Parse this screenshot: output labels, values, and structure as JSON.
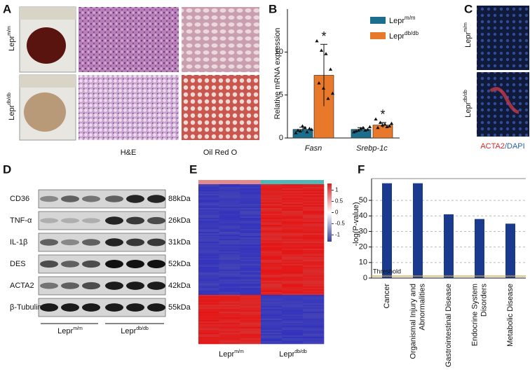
{
  "panels": {
    "a": {
      "letter": "A",
      "rows": [
        {
          "base": "Lepr",
          "sup": "m/m"
        },
        {
          "base": "Lepr",
          "sup": "db/db"
        }
      ],
      "stains": [
        "H&E",
        "Oil Red O"
      ]
    },
    "c": {
      "letter": "C",
      "rows": [
        {
          "base": "Lepr",
          "sup": "m/m"
        },
        {
          "base": "Lepr",
          "sup": "db/db"
        }
      ],
      "stain": [
        "ACTA2",
        "/DAPI"
      ]
    },
    "d": {
      "letter": "D",
      "proteins": [
        "CD36",
        "TNF-α",
        "IL-1β",
        "DES",
        "ACTA2",
        "β-Tubulin"
      ],
      "sizes": [
        "88kDa",
        "26kDa",
        "31kDa",
        "52kDa",
        "42kDa",
        "55kDa"
      ],
      "groups": [
        {
          "base": "Lepr",
          "sup": "m/m"
        },
        {
          "base": "Lepr",
          "sup": "db/db"
        }
      ]
    },
    "e": {
      "letter": "E",
      "scale_lim": [
        -1.3,
        1.3
      ],
      "scale_ticks": [
        1,
        0.5,
        0,
        -0.5,
        -1
      ],
      "groups": [
        {
          "base": "Lepr",
          "sup": "m/m"
        },
        {
          "base": "Lepr",
          "sup": "db/db"
        }
      ]
    }
  },
  "chart_data": [
    {
      "type": "bar",
      "panel": "B",
      "y_label": "Relative mRNA expression",
      "categories": [
        "Fasn",
        "Srebp-1c"
      ],
      "series": [
        {
          "name": "Lepr",
          "name_sup": "m/m",
          "color": "#1c6f8c",
          "values": [
            1,
            1
          ],
          "errors": [
            0.25,
            0.2
          ],
          "points": [
            [
              0.6,
              0.8,
              1.2,
              1.1,
              0.9,
              1.4,
              0.7,
              1.0
            ],
            [
              0.7,
              0.9,
              1.2,
              1.0,
              0.8,
              1.1,
              0.9,
              1.3
            ]
          ]
        },
        {
          "name": "Lepr",
          "name_sup": "db/db",
          "color": "#e8782a",
          "values": [
            7.3,
            1.5
          ],
          "errors": [
            3.6,
            0.3
          ],
          "points": [
            [
              11.3,
              10.2,
              9.8,
              8.0,
              6.4,
              5.8,
              4.6,
              5.2
            ],
            [
              2.2,
              1.8,
              1.6,
              1.4,
              1.2,
              1.5,
              1.3,
              1.7
            ]
          ]
        }
      ],
      "annotations": [
        "*",
        "*"
      ],
      "ylim": [
        0,
        15
      ],
      "yticks": [
        0,
        5,
        10
      ]
    },
    {
      "type": "bar",
      "panel": "F",
      "y_label": "-log(P-value)",
      "categories": [
        [
          "Cancer"
        ],
        [
          "Organismal Injury and",
          "Abnormalities"
        ],
        [
          "Gastrointestinal Disease"
        ],
        [
          "Endocrine System",
          "Disorders"
        ],
        [
          "Metabolic Disease"
        ]
      ],
      "values": [
        61,
        61,
        41,
        38,
        35
      ],
      "color": "#1a3a8f",
      "ylim": [
        0,
        64
      ],
      "yticks": [
        0,
        10,
        20,
        30,
        40,
        50
      ],
      "grid": true,
      "threshold": {
        "label": "Threshold",
        "value": 1.3,
        "color": "#d9a33a"
      }
    }
  ]
}
